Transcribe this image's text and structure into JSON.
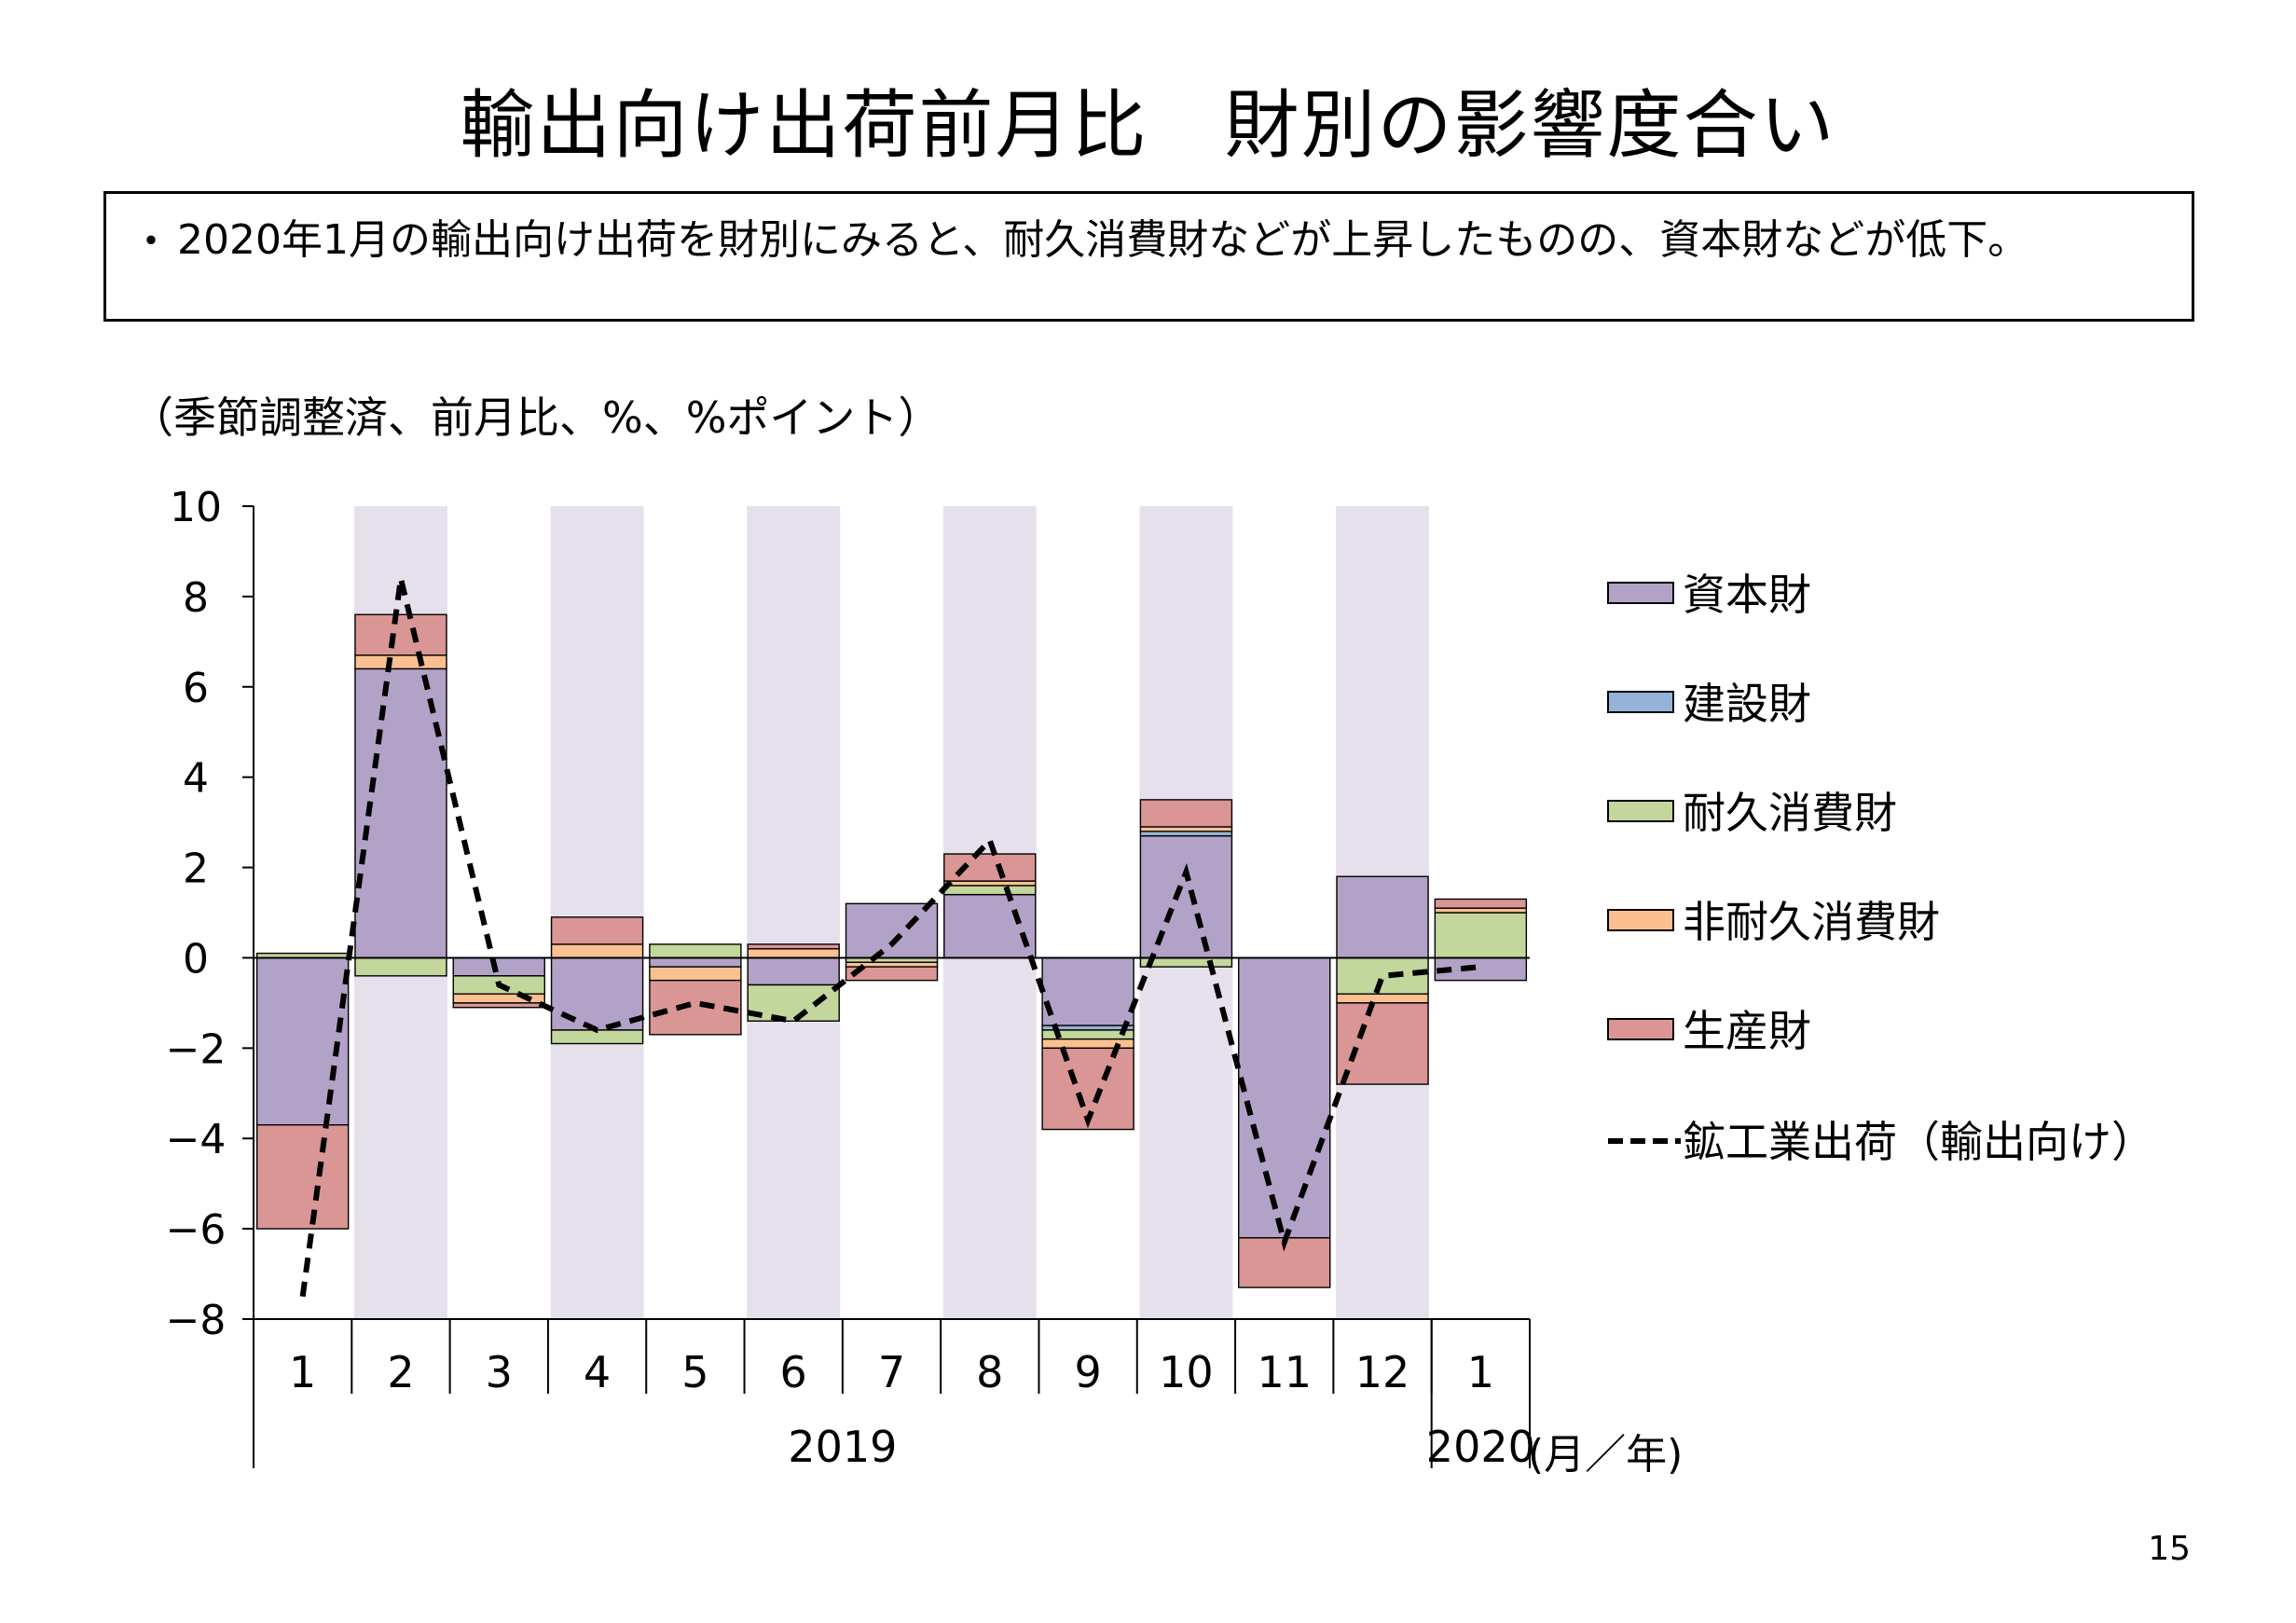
{
  "title": "輸出向け出荷前月比　財別の影響度合い",
  "summary": {
    "bullet": "・",
    "text": "2020年1月の輸出向け出荷を財別にみると、耐久消費財などが上昇したものの、資本財などが低下。"
  },
  "unit_note": "（季節調整済、前月比、%、%ポイント）",
  "page_number": "15",
  "colors": {
    "capital": "#B3A2C7",
    "construction": "#95B3D7",
    "durable": "#C3D69B",
    "nondurable": "#FAC090",
    "producer": "#D99694",
    "shade": "#E6E0EC",
    "line": "#000000"
  },
  "chart_data": {
    "type": "bar",
    "stacked": true,
    "categories": [
      "1",
      "2",
      "3",
      "4",
      "5",
      "6",
      "7",
      "8",
      "9",
      "10",
      "11",
      "12",
      "1"
    ],
    "year_labels": [
      {
        "label": "2019",
        "from": 0,
        "to": 11
      },
      {
        "label": "2020",
        "from": 12,
        "to": 12
      }
    ],
    "x_unit_label": "(月／年)",
    "yticks": [
      "10",
      "8",
      "6",
      "4",
      "2",
      "0",
      "−2",
      "−4",
      "−6",
      "−8"
    ],
    "ylim": [
      -8,
      10
    ],
    "shaded_categories": [
      1,
      3,
      5,
      7,
      9,
      11
    ],
    "legend_position": "right",
    "series": [
      {
        "name": "資本財",
        "key": "capital",
        "values": [
          -3.7,
          6.4,
          -0.4,
          -1.6,
          -0.2,
          -0.6,
          1.2,
          1.4,
          -1.5,
          2.7,
          -6.2,
          1.8,
          -0.5
        ]
      },
      {
        "name": "建設財",
        "key": "construction",
        "values": [
          0.0,
          0.0,
          0.0,
          0.0,
          0.0,
          0.0,
          0.0,
          0.0,
          -0.1,
          0.1,
          0.0,
          0.0,
          0.0
        ]
      },
      {
        "name": "耐久消費財",
        "key": "durable",
        "values": [
          0.1,
          -0.4,
          -0.4,
          -0.3,
          0.3,
          -0.8,
          -0.1,
          0.2,
          -0.2,
          -0.2,
          0.0,
          -0.8,
          1.0
        ]
      },
      {
        "name": "非耐久消費財",
        "key": "nondurable",
        "values": [
          0.0,
          0.3,
          -0.2,
          0.3,
          -0.3,
          0.2,
          -0.1,
          0.1,
          -0.2,
          0.1,
          0.0,
          -0.2,
          0.1
        ]
      },
      {
        "name": "生産財",
        "key": "producer",
        "values": [
          -2.3,
          0.9,
          -0.1,
          0.6,
          -1.2,
          0.1,
          -0.3,
          0.6,
          -1.8,
          0.6,
          -1.1,
          -1.8,
          0.2
        ]
      }
    ],
    "line": {
      "name": "鉱工業出荷（輸出向け）",
      "values": [
        -7.5,
        8.4,
        -0.6,
        -1.6,
        -1.0,
        -1.4,
        0.3,
        2.6,
        -3.6,
        1.9,
        -6.3,
        -0.4,
        -0.2
      ]
    }
  }
}
